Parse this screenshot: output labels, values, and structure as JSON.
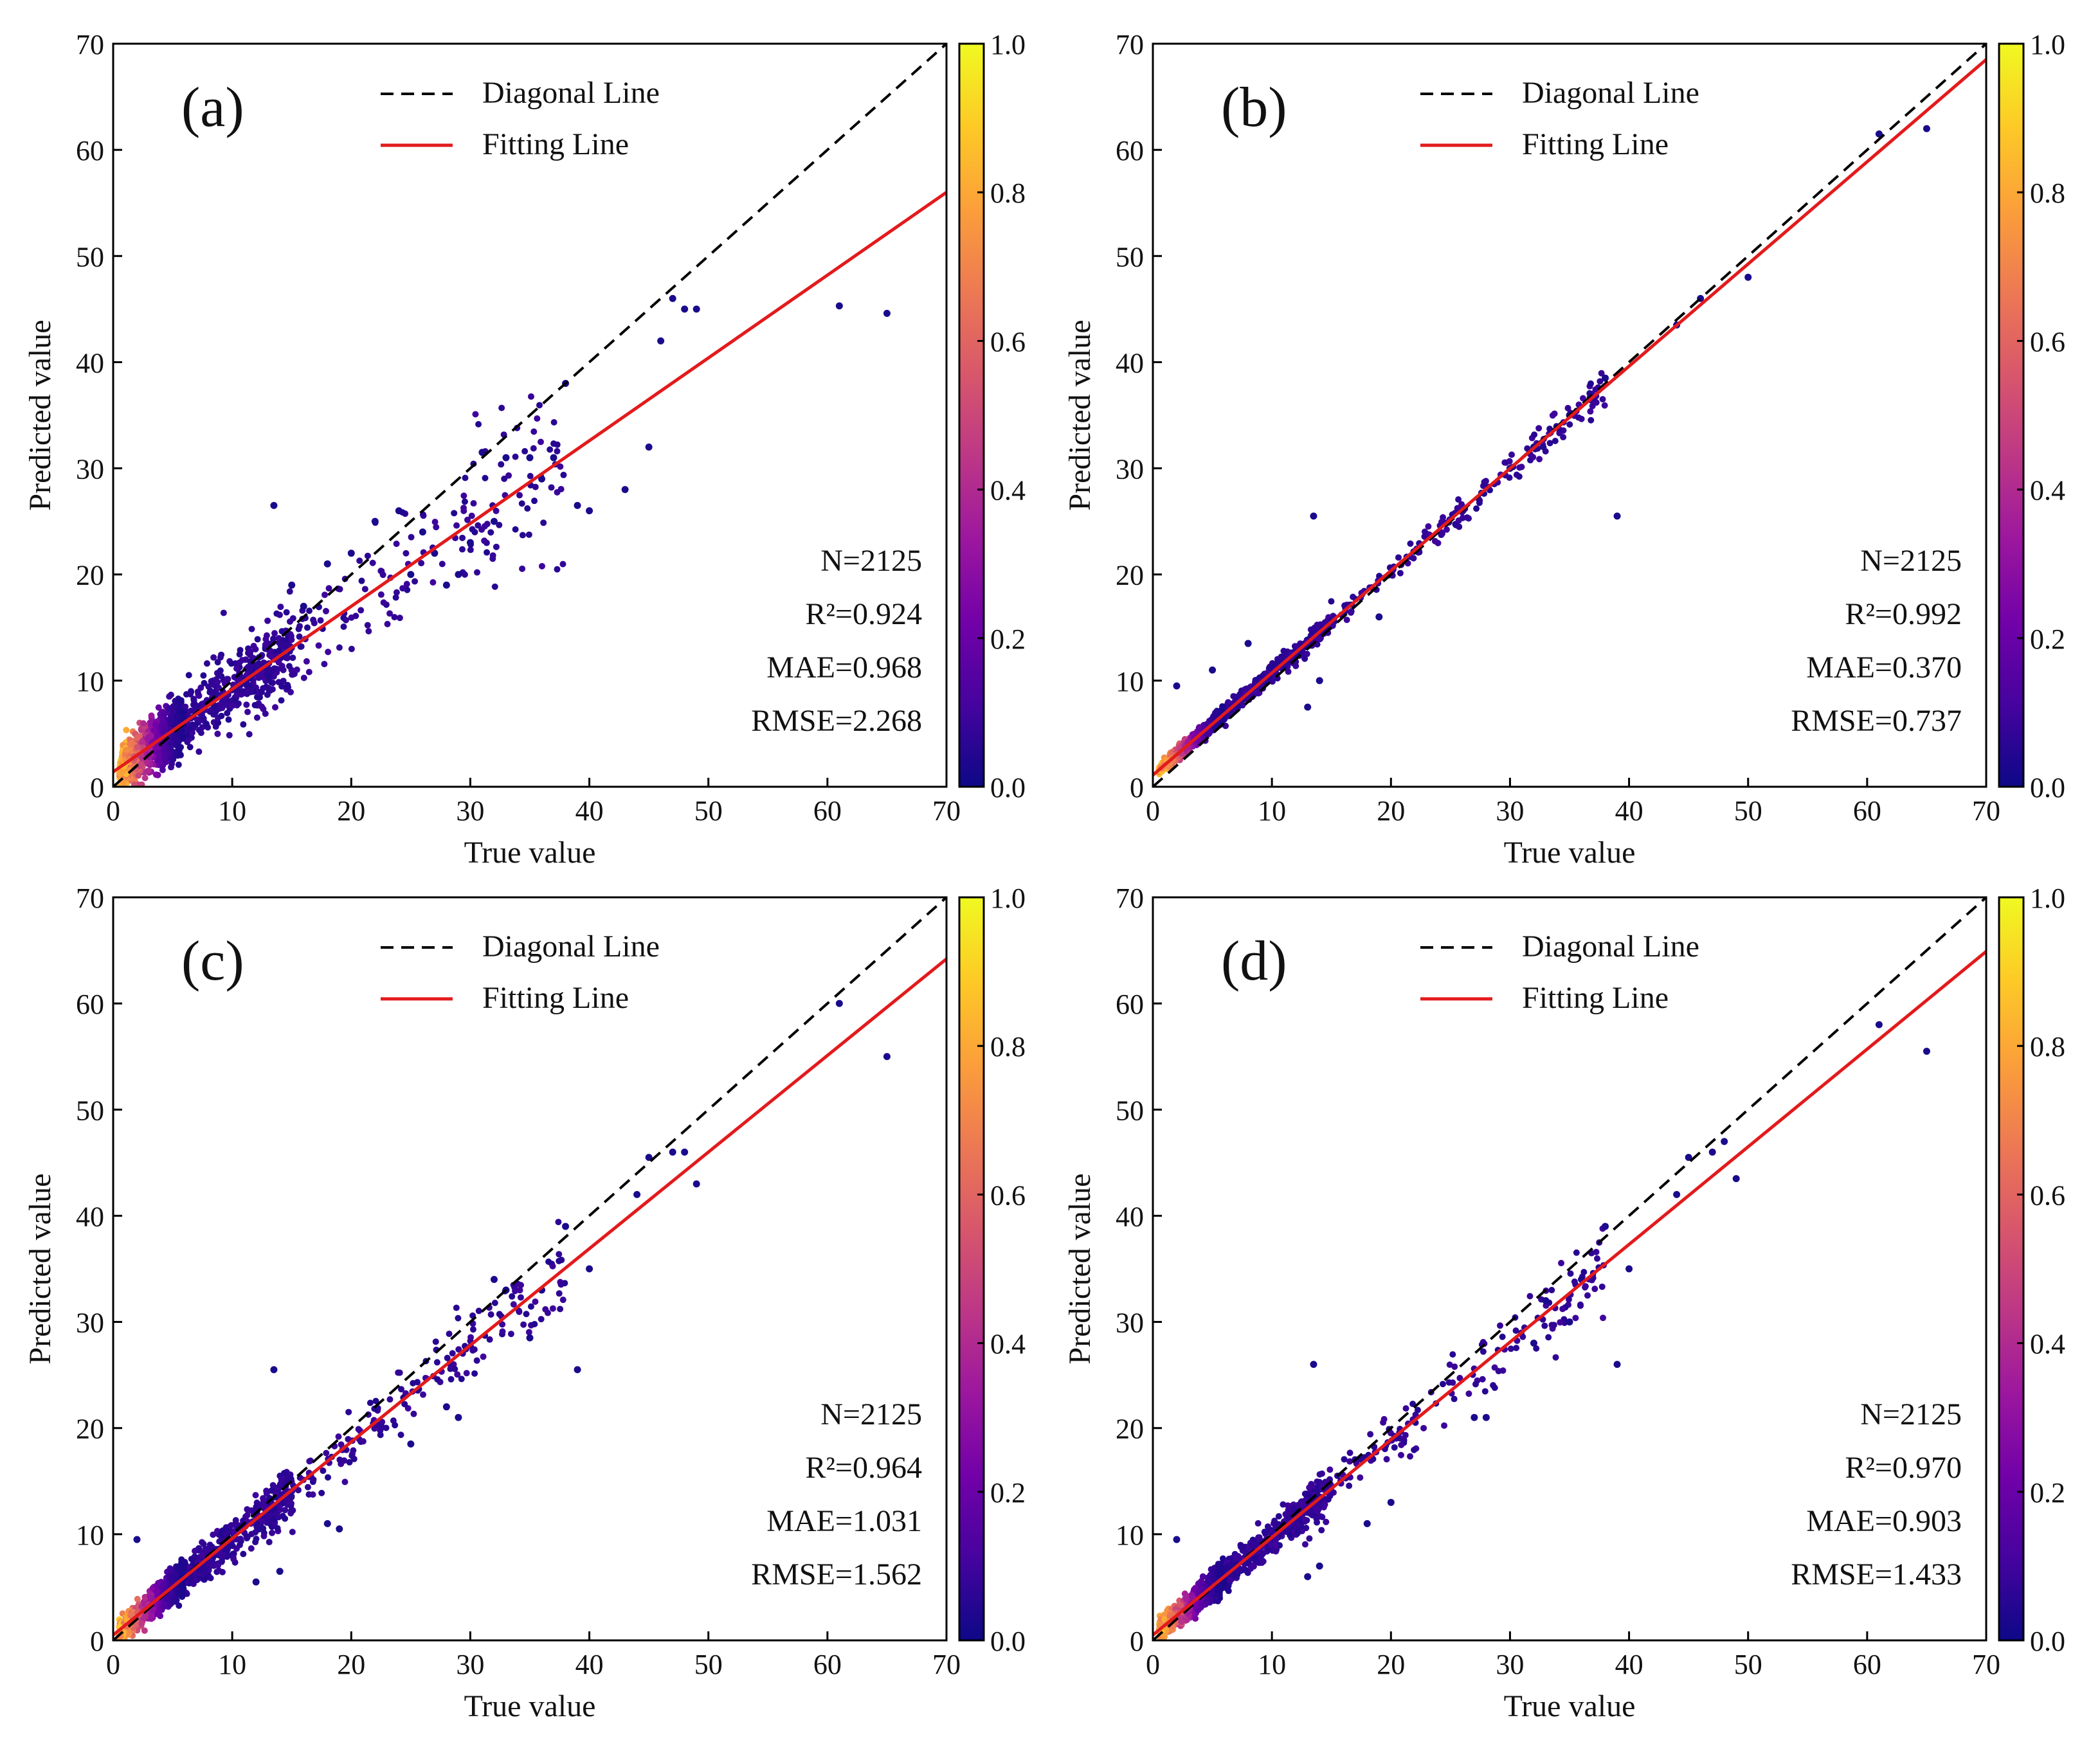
{
  "colormap": {
    "name": "plasma",
    "stops": [
      "#0d0887",
      "#46039f",
      "#7201a8",
      "#9c179e",
      "#bd3786",
      "#d8576b",
      "#ed7953",
      "#fb9f3a",
      "#fdca26",
      "#f0f921"
    ],
    "ticks": [
      "0.0",
      "0.2",
      "0.4",
      "0.6",
      "0.8",
      "1.0"
    ]
  },
  "colors": {
    "fit_line": "#e31a1c",
    "diagonal_line": "#000000",
    "point_low": "#1a0a8c"
  },
  "chart_data": [
    {
      "type": "scatter",
      "panel": "(a)",
      "xlabel": "True value",
      "ylabel": "Predicted value",
      "xlim": [
        0,
        70
      ],
      "ylim": [
        0,
        70
      ],
      "xticks": [
        0,
        10,
        20,
        30,
        40,
        50,
        60,
        70
      ],
      "yticks": [
        0,
        10,
        20,
        30,
        40,
        50,
        60,
        70
      ],
      "legend": [
        "Diagonal Line",
        "Fitting Line"
      ],
      "fit": {
        "intercept": 1.4,
        "slope": 0.78
      },
      "stats": [
        "N=2125",
        "R²=0.924",
        "MAE=0.968",
        "RMSE=2.268"
      ],
      "points": [
        [
          13.5,
          26.5
        ],
        [
          27,
          22
        ],
        [
          28,
          19
        ],
        [
          29,
          20
        ],
        [
          30,
          23
        ],
        [
          31,
          31.5
        ],
        [
          32,
          25
        ],
        [
          33,
          31
        ],
        [
          35,
          31
        ],
        [
          36,
          29
        ],
        [
          37,
          31
        ],
        [
          38,
          38
        ],
        [
          39,
          26.5
        ],
        [
          40,
          26
        ],
        [
          43,
          28
        ],
        [
          45,
          32
        ],
        [
          46,
          42
        ],
        [
          47,
          46
        ],
        [
          48,
          45
        ],
        [
          49,
          45
        ],
        [
          61,
          45.3
        ],
        [
          65,
          44.6
        ],
        [
          20,
          22
        ],
        [
          22,
          25
        ],
        [
          24,
          26
        ],
        [
          25,
          20
        ],
        [
          26,
          24
        ],
        [
          18,
          21
        ],
        [
          16,
          17
        ],
        [
          15,
          19
        ]
      ]
    },
    {
      "type": "scatter",
      "panel": "(b)",
      "xlabel": "True value",
      "ylabel": "Predicted value",
      "xlim": [
        0,
        70
      ],
      "ylim": [
        0,
        70
      ],
      "xticks": [
        0,
        10,
        20,
        30,
        40,
        50,
        60,
        70
      ],
      "yticks": [
        0,
        10,
        20,
        30,
        40,
        50,
        60,
        70
      ],
      "legend": [
        "Diagonal Line",
        "Fitting Line"
      ],
      "fit": {
        "intercept": 1.1,
        "slope": 0.963
      },
      "stats": [
        "N=2125",
        "R²=0.992",
        "MAE=0.370",
        "RMSE=0.737"
      ],
      "points": [
        [
          13.5,
          25.5
        ],
        [
          39,
          25.5
        ],
        [
          61,
          61.5
        ],
        [
          65,
          62
        ],
        [
          46,
          46
        ],
        [
          50,
          48
        ],
        [
          44,
          43.5
        ],
        [
          38,
          38.5
        ],
        [
          35,
          35
        ],
        [
          2,
          9.5
        ],
        [
          5,
          11
        ],
        [
          8,
          13.5
        ],
        [
          13,
          7.5
        ],
        [
          14,
          10
        ],
        [
          19,
          16
        ],
        [
          30,
          30
        ],
        [
          32,
          32
        ]
      ]
    },
    {
      "type": "scatter",
      "panel": "(c)",
      "xlabel": "True value",
      "ylabel": "Predicted value",
      "xlim": [
        0,
        70
      ],
      "ylim": [
        0,
        70
      ],
      "xticks": [
        0,
        10,
        20,
        30,
        40,
        50,
        60,
        70
      ],
      "yticks": [
        0,
        10,
        20,
        30,
        40,
        50,
        60,
        70
      ],
      "legend": [
        "Diagonal Line",
        "Fitting Line"
      ],
      "fit": {
        "intercept": 0.5,
        "slope": 0.91
      },
      "stats": [
        "N=2125",
        "R²=0.964",
        "MAE=1.031",
        "RMSE=1.562"
      ],
      "points": [
        [
          13.5,
          25.5
        ],
        [
          39,
          25.5
        ],
        [
          61,
          60
        ],
        [
          65,
          55
        ],
        [
          49,
          43
        ],
        [
          45,
          45.5
        ],
        [
          47,
          46
        ],
        [
          48,
          46
        ],
        [
          44,
          42
        ],
        [
          40,
          35
        ],
        [
          38,
          39
        ],
        [
          36,
          33
        ],
        [
          35,
          28.5
        ],
        [
          33,
          33
        ],
        [
          32,
          34
        ],
        [
          29,
          21
        ],
        [
          28,
          22
        ],
        [
          25,
          18.5
        ],
        [
          2,
          9.5
        ],
        [
          12,
          5.5
        ],
        [
          14,
          6.5
        ],
        [
          18,
          11
        ],
        [
          19,
          10.5
        ]
      ]
    },
    {
      "type": "scatter",
      "panel": "(d)",
      "xlabel": "True value",
      "ylabel": "Predicted value",
      "xlim": [
        0,
        70
      ],
      "ylim": [
        0,
        70
      ],
      "xticks": [
        0,
        10,
        20,
        30,
        40,
        50,
        60,
        70
      ],
      "yticks": [
        0,
        10,
        20,
        30,
        40,
        50,
        60,
        70
      ],
      "legend": [
        "Diagonal Line",
        "Fitting Line"
      ],
      "fit": {
        "intercept": 0.5,
        "slope": 0.92
      },
      "stats": [
        "N=2125",
        "R²=0.970",
        "MAE=0.903",
        "RMSE=1.433"
      ],
      "points": [
        [
          13.5,
          26
        ],
        [
          39,
          26
        ],
        [
          61,
          58
        ],
        [
          65,
          55.5
        ],
        [
          49,
          43.5
        ],
        [
          45,
          45.5
        ],
        [
          47,
          46
        ],
        [
          48,
          47
        ],
        [
          44,
          42
        ],
        [
          40,
          35
        ],
        [
          38,
          39
        ],
        [
          36,
          34
        ],
        [
          35,
          30
        ],
        [
          33,
          32
        ],
        [
          32,
          28
        ],
        [
          28,
          21
        ],
        [
          27,
          21
        ],
        [
          2,
          9.5
        ],
        [
          13,
          6
        ],
        [
          14,
          7
        ],
        [
          18,
          11
        ],
        [
          20,
          13
        ]
      ]
    }
  ]
}
